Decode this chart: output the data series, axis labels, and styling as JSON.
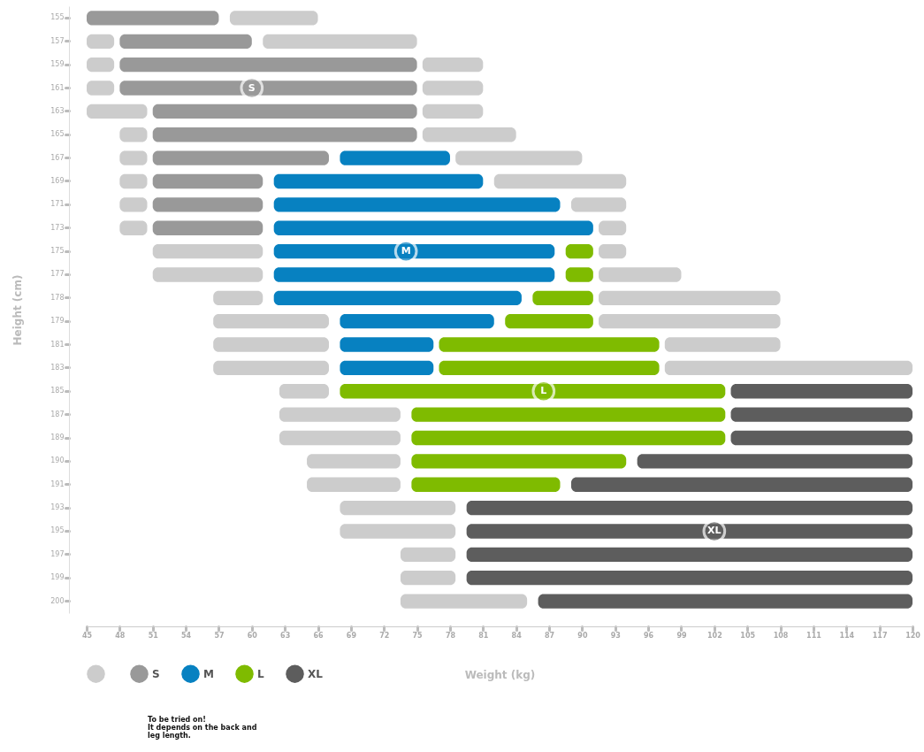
{
  "chart_data": {
    "type": "bar",
    "orientation": "horizontal",
    "xlabel": "Weight (kg)",
    "ylabel": "Height (cm)",
    "categories": [
      "155",
      "157",
      "159",
      "161",
      "163",
      "165",
      "167",
      "169",
      "171",
      "173",
      "175",
      "177",
      "178",
      "179",
      "181",
      "183",
      "185",
      "187",
      "189",
      "190",
      "191",
      "193",
      "195",
      "197",
      "199",
      "200"
    ],
    "xlim": [
      45,
      120
    ],
    "xticks": [
      45,
      48,
      51,
      54,
      57,
      60,
      63,
      66,
      69,
      72,
      75,
      78,
      81,
      84,
      87,
      90,
      93,
      96,
      99,
      102,
      105,
      108,
      111,
      114,
      117,
      120
    ],
    "grid": false,
    "legend": "bottom left",
    "series": [
      {
        "color": "#cccccc",
        "base": [
          null,
          45,
          45,
          45,
          45,
          48,
          48,
          48,
          48,
          48,
          51,
          51,
          56.5,
          56.5,
          56.5,
          56.5,
          62.5,
          62.5,
          62.5,
          65,
          65,
          68,
          68,
          73.5,
          73.5,
          73.5
        ],
        "values": [
          null,
          2.5,
          2.5,
          2.5,
          5.5,
          2.5,
          2.5,
          2.5,
          2.5,
          2.5,
          10,
          10,
          4.5,
          10.5,
          10.5,
          10.5,
          4.5,
          11,
          11,
          8.5,
          8.5,
          10.5,
          10.5,
          5,
          5,
          11.5
        ]
      },
      {
        "name": "S",
        "color": "#999999",
        "base": [
          45,
          48,
          48,
          48,
          51,
          51,
          51,
          51,
          51,
          51,
          null,
          null,
          null,
          null,
          null,
          null,
          null,
          null,
          null,
          null,
          null,
          null,
          null,
          null,
          null,
          null
        ],
        "values": [
          12,
          12,
          27,
          27,
          24,
          24,
          16,
          10,
          10,
          10,
          null,
          null,
          null,
          null,
          null,
          null,
          null,
          null,
          null,
          null,
          null,
          null,
          null,
          null,
          null,
          null
        ]
      },
      {
        "name": "M",
        "color": "#0781c1",
        "base": [
          null,
          null,
          null,
          null,
          null,
          null,
          68,
          62,
          62,
          62,
          62,
          62,
          62,
          68,
          68,
          68,
          null,
          null,
          null,
          null,
          null,
          null,
          null,
          null,
          null,
          null
        ],
        "values": [
          null,
          null,
          null,
          null,
          null,
          null,
          10,
          19,
          26,
          29,
          25.5,
          25.5,
          22.5,
          14,
          8.5,
          8.5,
          null,
          null,
          null,
          null,
          null,
          null,
          null,
          null,
          null,
          null
        ]
      },
      {
        "name": "L",
        "color": "#7fbb00",
        "base": [
          null,
          null,
          null,
          null,
          null,
          null,
          null,
          null,
          null,
          null,
          88.5,
          88.5,
          85.5,
          83,
          77,
          77,
          68,
          74.5,
          74.5,
          74.5,
          74.5,
          null,
          null,
          null,
          null,
          null
        ],
        "values": [
          null,
          null,
          null,
          null,
          null,
          null,
          null,
          null,
          null,
          null,
          2.5,
          2.5,
          5.5,
          8,
          20,
          20,
          35,
          28.5,
          28.5,
          19.5,
          13.5,
          null,
          null,
          null,
          null,
          null
        ]
      },
      {
        "name": "XL",
        "color": "#5d5d5d",
        "base": [
          null,
          null,
          null,
          null,
          null,
          null,
          null,
          null,
          null,
          null,
          null,
          null,
          null,
          null,
          null,
          null,
          103.5,
          103.5,
          103.5,
          95,
          89,
          79.5,
          79.5,
          79.5,
          79.5,
          86
        ],
        "values": [
          null,
          null,
          null,
          null,
          null,
          null,
          null,
          null,
          null,
          null,
          null,
          null,
          null,
          null,
          null,
          null,
          16.5,
          16.5,
          16.5,
          25,
          31,
          40.5,
          40.5,
          40.5,
          40.5,
          34
        ]
      },
      {
        "color": "#cccccc",
        "base": [
          58,
          61,
          75.5,
          75.5,
          75.5,
          75.5,
          78.5,
          82,
          89,
          91.5,
          91.5,
          91.5,
          91.5,
          91.5,
          97.5,
          97.5,
          null,
          null,
          null,
          null,
          null,
          null,
          null,
          null,
          null,
          null
        ],
        "values": [
          8,
          14,
          5.5,
          5.5,
          5.5,
          8.5,
          11.5,
          12,
          5,
          2.5,
          2.5,
          7.5,
          16.5,
          16.5,
          10.5,
          22.5,
          null,
          null,
          null,
          null,
          null,
          null,
          null,
          null,
          null,
          null
        ]
      }
    ],
    "annotations": [
      {
        "text": "S",
        "x": 60,
        "y": "161"
      },
      {
        "text": "M",
        "x": 74,
        "y": "175"
      },
      {
        "text": "L",
        "x": 86.5,
        "y": "185"
      },
      {
        "text": "XL",
        "x": 102,
        "y": "195"
      },
      "To be tried on!\nIt depends on the back and\nleg length."
    ]
  }
}
